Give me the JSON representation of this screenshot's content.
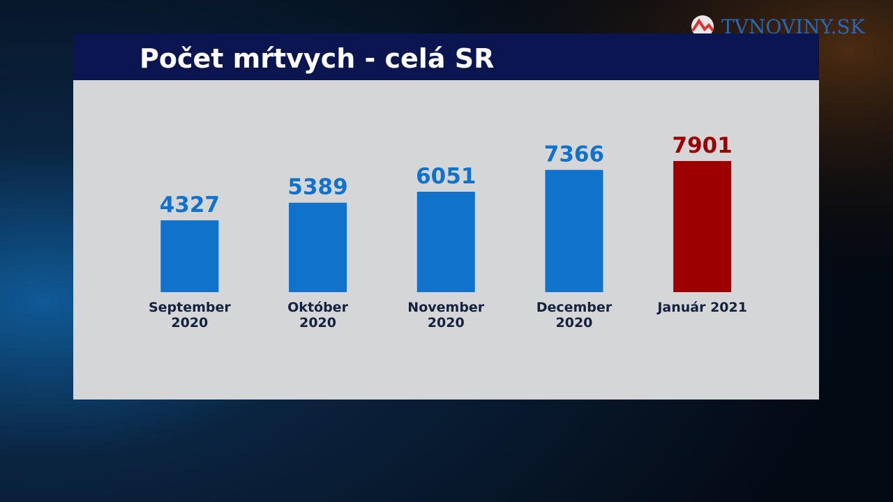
{
  "brand": "TVNOVINY.SK",
  "chart_data": {
    "type": "bar",
    "title": "Počet mŕtvych - celá SR",
    "categories": [
      "September\n2020",
      "Október\n2020",
      "November\n2020",
      "December\n2020",
      "Január 2021"
    ],
    "values": [
      4327,
      5389,
      6051,
      7366,
      7901
    ],
    "colors": [
      "#1172cc",
      "#1172cc",
      "#1172cc",
      "#1172cc",
      "#9c0000"
    ],
    "ylim": [
      0,
      10000
    ]
  }
}
